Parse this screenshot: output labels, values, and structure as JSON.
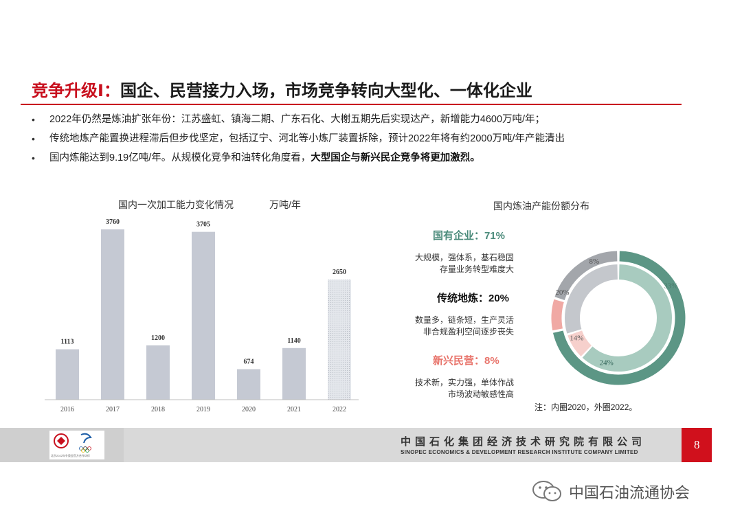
{
  "header": {
    "title_prefix": "竞争升级Ⅰ：",
    "title_main": "国企、民营接力入场，市场竞争转向大型化、一体化企业"
  },
  "bullets": [
    {
      "text": "2022年仍然是炼油扩张年份：江苏盛虹、镇海二期、广东石化、大榭五期先后实现达产，新增能力4600万吨/年；",
      "bold": ""
    },
    {
      "text": "传统地炼产能置换进程滞后但步伐坚定，包括辽宁、河北等小炼厂装置拆除，预计2022年将有约2000万吨/年产能清出",
      "bold": ""
    },
    {
      "text": "国内炼能达到9.19亿吨/年。从规模化竞争和油转化角度看，",
      "bold": "大型国企与新兴民企竞争将更加激烈。"
    }
  ],
  "bar_section": {
    "title": "国内一次加工能力变化情况",
    "unit": "万吨/年"
  },
  "donut_section": {
    "title": "国内炼油产能份额分布",
    "segments": [
      {
        "title": "国有企业：71%",
        "desc": [
          "大规模，强体系，基石稳固",
          "存量业务转型难度大"
        ],
        "color": "#4a8a7a"
      },
      {
        "title": "传统地炼：20%",
        "desc": [
          "数量多，链条短，生产灵活",
          "非合规盈利空间逐步丧失"
        ],
        "color": "#111111"
      },
      {
        "title": "新兴民营：8%",
        "desc": [
          "技术新，实力强，单体作战",
          "市场波动敏感性高"
        ],
        "color": "#e8736a"
      }
    ],
    "note": "注：内圈2020，外圈2022。"
  },
  "chart_data": [
    {
      "type": "bar",
      "title": "国内一次加工能力变化情况",
      "ylabel": "万吨/年",
      "categories": [
        "2016",
        "2017",
        "2018",
        "2019",
        "2020",
        "2021",
        "2022"
      ],
      "values": [
        1113,
        3760,
        1200,
        3705,
        674,
        1140,
        2650
      ],
      "ylim": [
        0,
        3760
      ],
      "colors": {
        "normal": "#c5c9d3",
        "highlight": "#dde0e6"
      },
      "highlight_category": "2022",
      "grid": false
    },
    {
      "type": "pie",
      "title": "国内炼油产能份额分布",
      "series": [
        {
          "name": "外圈2022",
          "labels": [
            "国有企业",
            "新兴民营",
            "传统地炼"
          ],
          "values": [
            71,
            8,
            20
          ],
          "colors": [
            "#5c9685",
            "#f0a9a4",
            "#a3a6ab"
          ]
        },
        {
          "name": "内圈2020",
          "labels": [
            "国有企业",
            "新兴民营",
            "传统地炼"
          ],
          "values": [
            62,
            8,
            30
          ],
          "colors": [
            "#a8cbbf",
            "#f6d0cc",
            "#c4c7cc"
          ]
        }
      ],
      "data_labels": [
        {
          "text": "33%",
          "color": "#4a7a6c"
        },
        {
          "text": "24%",
          "color": "#2b5f53"
        },
        {
          "text": "14%",
          "color": "#555"
        },
        {
          "text": "20%",
          "color": "#555"
        },
        {
          "text": "8%",
          "color": "#555"
        }
      ]
    }
  ],
  "footer": {
    "company_cn": "中国石化集团经济技术研究院有限公司",
    "company_en": "SINOPEC ECONOMICS & DEVELOPMENT RESEARCH INSTITUTE COMPANY LIMITED",
    "page_number": "8",
    "logo1_text": "中国石化 SINOPEC",
    "logo2_text": "Beijing 2022",
    "logo_caption": "北京2022年冬奥会官方合作伙伴"
  },
  "watermark": {
    "text": "中国石油流通协会"
  }
}
